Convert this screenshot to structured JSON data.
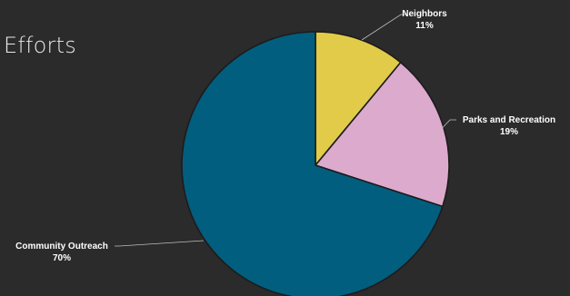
{
  "header": {
    "title": "Efforts"
  },
  "chart_data": {
    "type": "pie",
    "title": "Efforts",
    "start_angle_deg": 0,
    "direction": "clockwise",
    "slices": [
      {
        "label": "Neighbors",
        "value": 11,
        "value_label": "11%",
        "color": "#e1cb49"
      },
      {
        "label": "Parks and Recreation",
        "value": 19,
        "value_label": "19%",
        "color": "#dcaacc"
      },
      {
        "label": "Community Outreach",
        "value": 70,
        "value_label": "70%",
        "color": "#025e7e"
      }
    ],
    "slice_border_color": "#1c1c1c",
    "leader_line_color": "#bdbdbd",
    "legend": "none"
  }
}
